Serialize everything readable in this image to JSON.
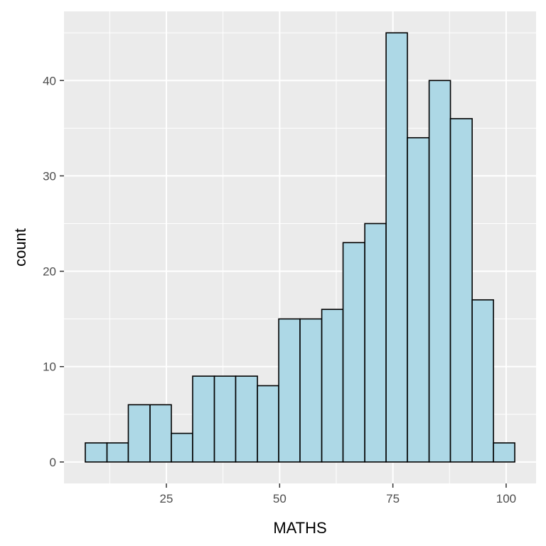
{
  "chart_data": {
    "type": "bar",
    "title": "",
    "xlabel": "MATHS",
    "ylabel": "count",
    "bins": [
      {
        "x0": 7.1,
        "x1": 11.9,
        "count": 2
      },
      {
        "x0": 11.9,
        "x1": 16.6,
        "count": 2
      },
      {
        "x0": 16.6,
        "x1": 21.4,
        "count": 6
      },
      {
        "x0": 21.4,
        "x1": 26.1,
        "count": 6
      },
      {
        "x0": 26.1,
        "x1": 30.8,
        "count": 3
      },
      {
        "x0": 30.8,
        "x1": 35.6,
        "count": 9
      },
      {
        "x0": 35.6,
        "x1": 40.3,
        "count": 9
      },
      {
        "x0": 40.3,
        "x1": 45.1,
        "count": 9
      },
      {
        "x0": 45.1,
        "x1": 49.8,
        "count": 8
      },
      {
        "x0": 49.8,
        "x1": 54.5,
        "count": 15
      },
      {
        "x0": 54.5,
        "x1": 59.3,
        "count": 15
      },
      {
        "x0": 59.3,
        "x1": 64.0,
        "count": 16
      },
      {
        "x0": 64.0,
        "x1": 68.8,
        "count": 23
      },
      {
        "x0": 68.8,
        "x1": 73.5,
        "count": 25
      },
      {
        "x0": 73.5,
        "x1": 78.2,
        "count": 45
      },
      {
        "x0": 78.2,
        "x1": 83.0,
        "count": 34
      },
      {
        "x0": 83.0,
        "x1": 87.7,
        "count": 40
      },
      {
        "x0": 87.7,
        "x1": 92.5,
        "count": 36
      },
      {
        "x0": 92.5,
        "x1": 97.2,
        "count": 17
      },
      {
        "x0": 97.2,
        "x1": 101.9,
        "count": 2
      }
    ],
    "xlim": [
      2.4,
      106.6
    ],
    "ylim": [
      -2.25,
      47.25
    ],
    "xticks": [
      25,
      50,
      75,
      100
    ],
    "yticks": [
      0,
      10,
      20,
      30,
      40
    ],
    "xminor": [
      12.5,
      37.5,
      62.5,
      87.5
    ],
    "yminor": [
      5,
      15,
      25,
      35,
      45
    ],
    "grid": true,
    "legend": "none",
    "colors": {
      "panel": "#ebebeb",
      "grid": "#ffffff",
      "bar_fill": "#add8e6",
      "bar_stroke": "#000000"
    }
  }
}
